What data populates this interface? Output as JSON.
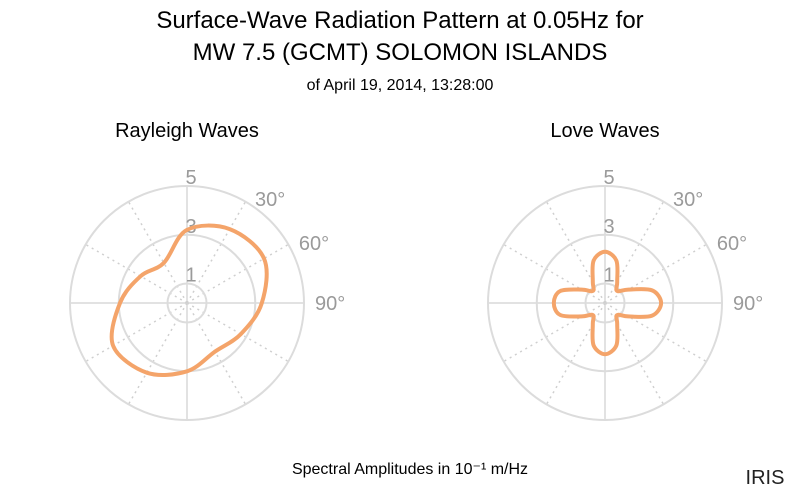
{
  "title": [
    "Surface-Wave Radiation Pattern at 0.05Hz for",
    "MW 7.5 (GCMT) SOLOMON ISLANDS"
  ],
  "subtitle": "of April 19, 2014, 13:28:00",
  "footer": "Spectral Amplitudes in 10⁻¹ m/Hz",
  "logo": "IRIS",
  "chart_data": [
    {
      "type": "polar",
      "title": "Rayleigh Waves",
      "theta": [
        0,
        30,
        60,
        90,
        120,
        150,
        180,
        210,
        240,
        270,
        300,
        330
      ],
      "values": [
        3.2,
        3.7,
        3.85,
        3.27,
        2.75,
        2.5,
        3.0,
        3.5,
        3.7,
        2.95,
        2.4,
        2.1
      ],
      "color": "#f4a46a",
      "rlim": [
        0.2,
        5
      ],
      "rticks": [
        1,
        3,
        5
      ],
      "thetaticks": [
        {
          "value": 30,
          "label": "30°"
        },
        {
          "value": 60,
          "label": "60°"
        },
        {
          "value": 90,
          "label": "90°"
        }
      ],
      "grid": true
    },
    {
      "type": "polar",
      "title": "Love Waves",
      "theta": [
        0,
        15,
        30,
        45,
        60,
        75,
        90,
        105,
        120,
        135,
        150,
        165,
        180,
        195,
        210,
        225,
        240,
        255,
        270,
        285,
        300,
        315,
        330,
        345
      ],
      "values": [
        2.3,
        2.0,
        1.2,
        0.9,
        1.3,
        2.2,
        2.5,
        2.2,
        1.3,
        0.9,
        1.2,
        2.0,
        2.3,
        2.0,
        1.2,
        0.9,
        1.3,
        2.1,
        2.3,
        2.1,
        1.3,
        0.9,
        1.2,
        2.0
      ],
      "color": "#f4a46a",
      "rlim": [
        0.2,
        5
      ],
      "rticks": [
        1,
        3,
        5
      ],
      "thetaticks": [
        {
          "value": 30,
          "label": "30°"
        },
        {
          "value": 60,
          "label": "60°"
        },
        {
          "value": 90,
          "label": "90°"
        }
      ],
      "grid": true
    }
  ]
}
